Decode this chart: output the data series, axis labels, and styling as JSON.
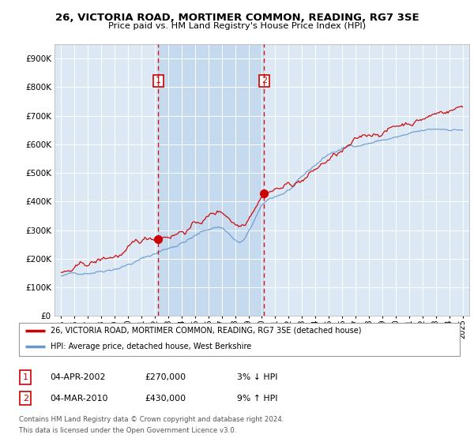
{
  "title": "26, VICTORIA ROAD, MORTIMER COMMON, READING, RG7 3SE",
  "subtitle": "Price paid vs. HM Land Registry's House Price Index (HPI)",
  "legend_line1": "26, VICTORIA ROAD, MORTIMER COMMON, READING, RG7 3SE (detached house)",
  "legend_line2": "HPI: Average price, detached house, West Berkshire",
  "table_rows": [
    {
      "num": "1",
      "date": "04-APR-2002",
      "price": "£270,000",
      "hpi": "3% ↓ HPI"
    },
    {
      "num": "2",
      "date": "04-MAR-2010",
      "price": "£430,000",
      "hpi": "9% ↑ HPI"
    }
  ],
  "footnote1": "Contains HM Land Registry data © Crown copyright and database right 2024.",
  "footnote2": "This data is licensed under the Open Government Licence v3.0.",
  "sale1_date": 2002.25,
  "sale1_price": 270000,
  "sale2_date": 2010.17,
  "sale2_price": 430000,
  "vline1": 2002.25,
  "vline2": 2010.17,
  "ylim": [
    0,
    950000
  ],
  "yticks": [
    0,
    100000,
    200000,
    300000,
    400000,
    500000,
    600000,
    700000,
    800000,
    900000
  ],
  "ytick_labels": [
    "£0",
    "£100K",
    "£200K",
    "£300K",
    "£400K",
    "£500K",
    "£600K",
    "£700K",
    "£800K",
    "£900K"
  ],
  "xlim_start": 1994.5,
  "xlim_end": 2025.5,
  "bg_color": "#dce9f5",
  "shade_color": "#c5d9ef",
  "line_color_red": "#cc0000",
  "line_color_blue": "#6699cc",
  "vline_color": "#cc0000",
  "sale_dot_color": "#cc0000",
  "grid_color": "white"
}
